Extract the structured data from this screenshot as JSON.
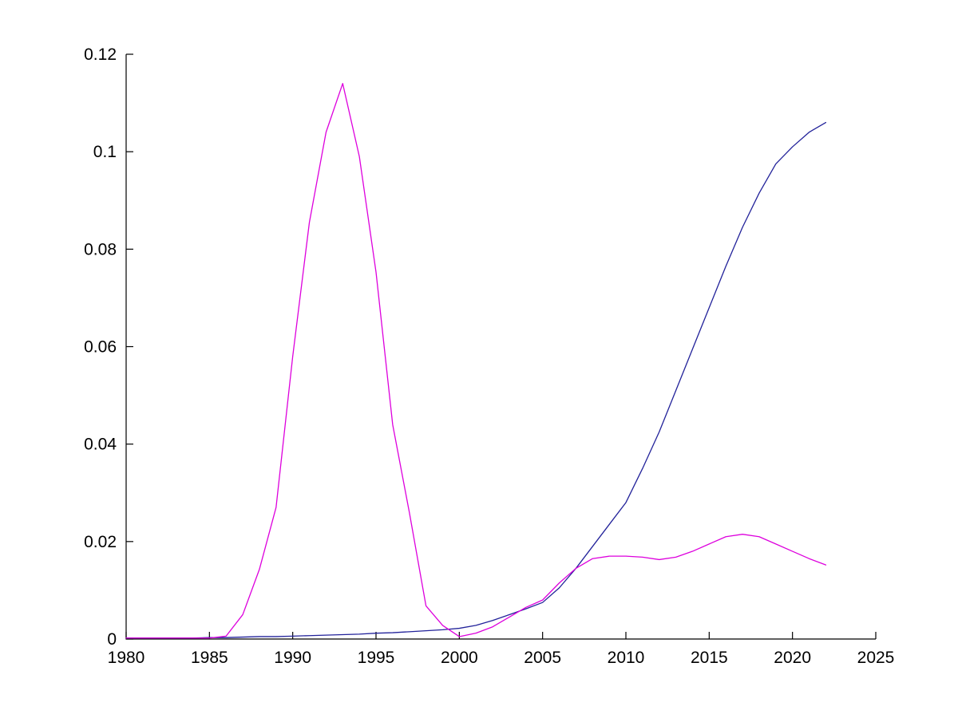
{
  "chart_data": {
    "type": "line",
    "grid": false,
    "xlim": [
      1980,
      2025
    ],
    "ylim": [
      0,
      0.12
    ],
    "x_ticks": [
      1980,
      1985,
      1990,
      1995,
      2000,
      2005,
      2010,
      2015,
      2020,
      2025
    ],
    "x_tick_labels": [
      "1980",
      "1985",
      "1990",
      "1995",
      "2000",
      "2005",
      "2010",
      "2015",
      "2020",
      "2025"
    ],
    "y_ticks": [
      0,
      0.02,
      0.04,
      0.06,
      0.08,
      0.1,
      0.12
    ],
    "y_tick_labels": [
      "0",
      "0.02",
      "0.04",
      "0.06",
      "0.08",
      "0.1",
      "0.12"
    ],
    "x": [
      1980,
      1981,
      1982,
      1983,
      1984,
      1985,
      1986,
      1987,
      1988,
      1989,
      1990,
      1991,
      1992,
      1993,
      1994,
      1995,
      1996,
      1997,
      1998,
      1999,
      2000,
      2001,
      2002,
      2003,
      2004,
      2005,
      2006,
      2007,
      2008,
      2009,
      2010,
      2011,
      2012,
      2013,
      2014,
      2015,
      2016,
      2017,
      2018,
      2019,
      2020,
      2021,
      2022
    ],
    "series": [
      {
        "name": "blue-line",
        "color": "#22229a",
        "values": [
          0.0002,
          0.0002,
          0.0002,
          0.0002,
          0.0002,
          0.0003,
          0.0003,
          0.0004,
          0.0005,
          0.0005,
          0.0006,
          0.0007,
          0.0008,
          0.0009,
          0.001,
          0.0012,
          0.0013,
          0.0015,
          0.0017,
          0.0019,
          0.0022,
          0.0028,
          0.0038,
          0.005,
          0.0062,
          0.0075,
          0.0105,
          0.0145,
          0.019,
          0.0235,
          0.028,
          0.035,
          0.0425,
          0.051,
          0.0595,
          0.068,
          0.0765,
          0.0845,
          0.0915,
          0.0975,
          0.101,
          0.104,
          0.106
        ]
      },
      {
        "name": "magenta-line",
        "color": "#dd00dd",
        "values": [
          0.0002,
          0.0002,
          0.0002,
          0.0002,
          0.0002,
          0.0002,
          0.0006,
          0.005,
          0.0143,
          0.027,
          0.058,
          0.0855,
          0.104,
          0.114,
          0.099,
          0.0753,
          0.044,
          0.026,
          0.0068,
          0.0028,
          0.0005,
          0.0012,
          0.0025,
          0.0045,
          0.0065,
          0.008,
          0.0115,
          0.0145,
          0.0165,
          0.017,
          0.017,
          0.0168,
          0.0163,
          0.0168,
          0.018,
          0.0195,
          0.021,
          0.0215,
          0.021,
          0.0195,
          0.018,
          0.0165,
          0.0152
        ]
      }
    ],
    "axis_color": "#000000",
    "background_color": "#ffffff"
  }
}
